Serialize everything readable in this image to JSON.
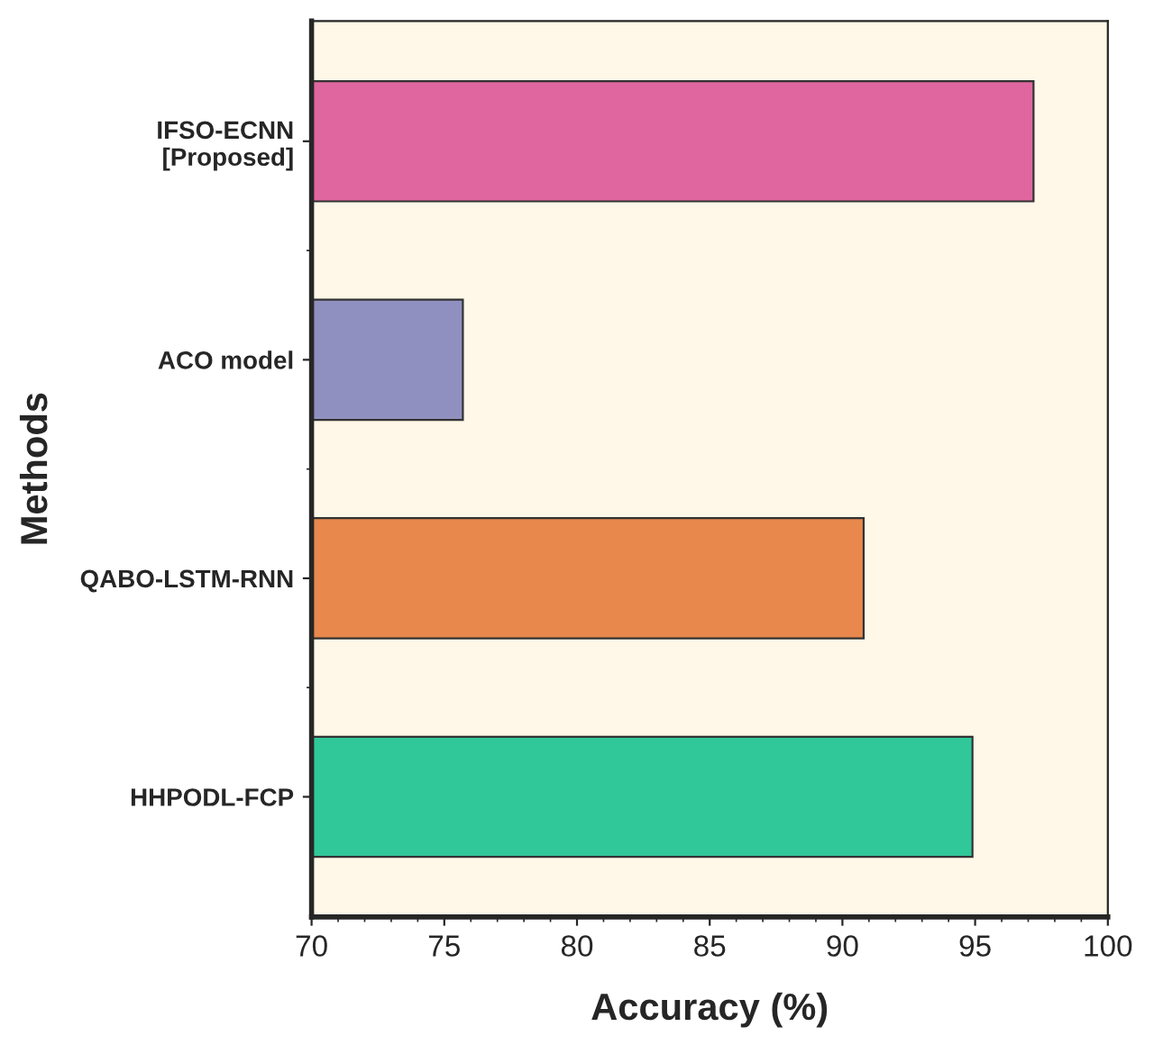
{
  "chart_data": {
    "type": "bar",
    "orientation": "horizontal",
    "xlabel": "Accuracy (%)",
    "ylabel": "Methods",
    "categories": [
      "IFSO-ECNN\n[Proposed]",
      "ACO model",
      "QABO-LSTM-RNN",
      "HHPODL-FCP"
    ],
    "values": [
      97.2,
      75.7,
      90.8,
      94.9
    ],
    "colors": [
      "#e066a0",
      "#9090c0",
      "#e8884c",
      "#30c898"
    ],
    "xlim": [
      70,
      100
    ],
    "xticks": [
      70,
      75,
      80,
      85,
      90,
      95,
      100
    ],
    "grid": false,
    "legend": false
  }
}
